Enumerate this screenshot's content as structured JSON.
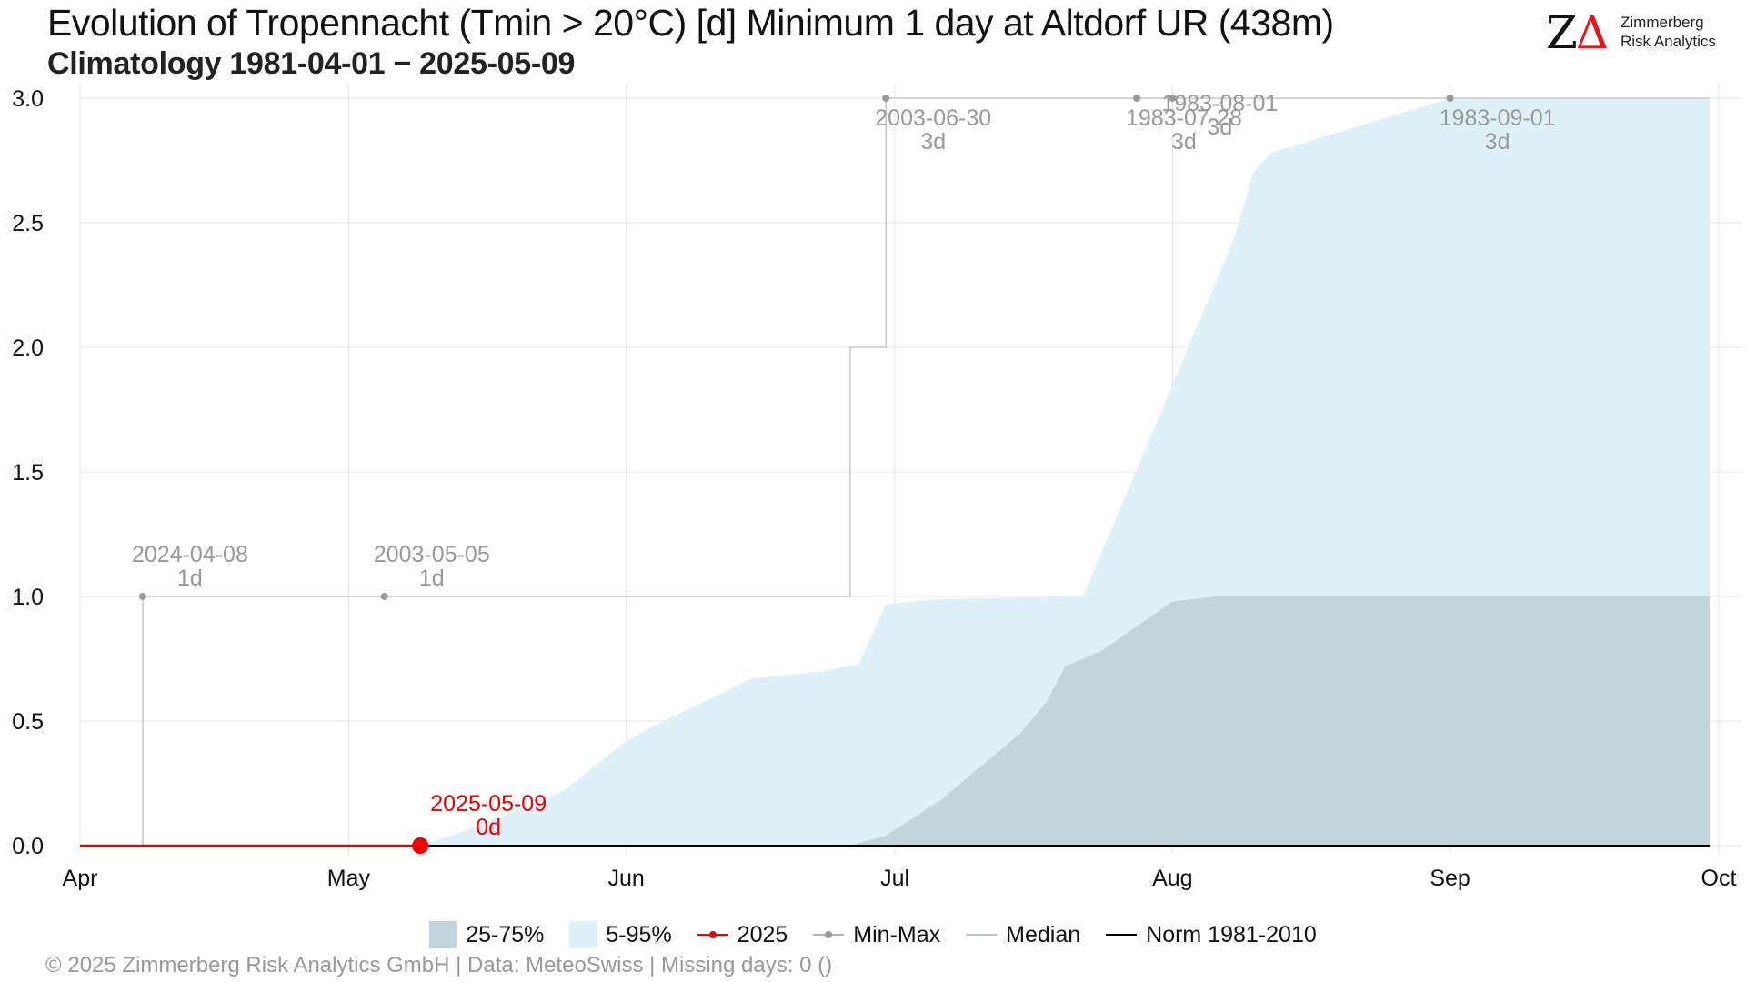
{
  "header": {
    "title": "Evolution of Tropennacht (Tmin > 20°C) [d] Minimum 1 day at Altdorf  UR (438m)",
    "subtitle": "Climatology 1981-04-01 − 2025-05-09"
  },
  "logo": {
    "mark_z": "Z",
    "mark_delta": "Δ",
    "line1": "Zimmerberg",
    "line2": "Risk Analytics"
  },
  "colors": {
    "band_5_95": "#dff1f8",
    "band_25_75": "#c1d5dc",
    "current_year": "#ee0000",
    "min_max": "#999999",
    "median": "#9eb4c9",
    "norm": "#000000",
    "annotation": "#999999"
  },
  "legend": [
    {
      "label": "25-75%",
      "kind": "fill",
      "color": "#c1d5dc"
    },
    {
      "label": "5-95%",
      "kind": "fill",
      "color": "#dff1f8"
    },
    {
      "label": "2025",
      "kind": "line-dot",
      "color": "#ee0000"
    },
    {
      "label": "Min-Max",
      "kind": "line-dot",
      "color": "#999999"
    },
    {
      "label": "Median",
      "kind": "line",
      "color": "#9eb4c9"
    },
    {
      "label": "Norm 1981-2010",
      "kind": "line",
      "color": "#000000"
    }
  ],
  "footer": "©  2025 Zimmerberg Risk Analytics GmbH | Data: MeteoSwiss | Missing days: 0 ()",
  "chart_data": {
    "type": "area",
    "title": "Evolution of Tropennacht (Tmin > 20°C) [d] Minimum 1 day at Altdorf  UR (438m)",
    "subtitle": "Climatology 1981-04-01 − 2025-05-09",
    "xlabel": "",
    "ylabel": "",
    "xlim": [
      "04-01",
      "10-01"
    ],
    "ylim": [
      0,
      3
    ],
    "x_ticks": [
      {
        "date": "04-01",
        "label": "Apr"
      },
      {
        "date": "05-01",
        "label": "May"
      },
      {
        "date": "06-01",
        "label": "Jun"
      },
      {
        "date": "07-01",
        "label": "Jul"
      },
      {
        "date": "08-01",
        "label": "Aug"
      },
      {
        "date": "09-01",
        "label": "Sep"
      },
      {
        "date": "10-01",
        "label": "Oct"
      }
    ],
    "y_ticks": [
      "0.0",
      "0.5",
      "1.0",
      "1.5",
      "2.0",
      "2.5",
      "3.0"
    ],
    "grid": true,
    "legend_position": "bottom",
    "series": [
      {
        "name": "5-95%",
        "kind": "band",
        "lower": [
          [
            "04-01",
            0
          ],
          [
            "09-30",
            0
          ]
        ],
        "upper": [
          [
            "05-09",
            0
          ],
          [
            "05-14",
            0.06
          ],
          [
            "05-25",
            0.22
          ],
          [
            "06-01",
            0.42
          ],
          [
            "06-04",
            0.48
          ],
          [
            "06-15",
            0.67
          ],
          [
            "06-23",
            0.7
          ],
          [
            "06-27",
            0.73
          ],
          [
            "06-30",
            0.97
          ],
          [
            "07-06",
            0.99
          ],
          [
            "07-22",
            1.0
          ],
          [
            "08-01",
            1.85
          ],
          [
            "08-08",
            2.45
          ],
          [
            "08-10",
            2.7
          ],
          [
            "08-12",
            2.78
          ],
          [
            "09-01",
            3.0
          ],
          [
            "09-30",
            3.0
          ]
        ]
      },
      {
        "name": "25-75%",
        "kind": "band",
        "lower": [
          [
            "04-01",
            0
          ],
          [
            "09-30",
            0
          ]
        ],
        "upper": [
          [
            "06-26",
            0
          ],
          [
            "06-30",
            0.04
          ],
          [
            "07-06",
            0.18
          ],
          [
            "07-15",
            0.45
          ],
          [
            "07-18",
            0.58
          ],
          [
            "07-20",
            0.72
          ],
          [
            "07-22",
            0.75
          ],
          [
            "07-24",
            0.78
          ],
          [
            "07-28",
            0.88
          ],
          [
            "08-01",
            0.98
          ],
          [
            "08-06",
            1.0
          ],
          [
            "09-30",
            1.0
          ]
        ]
      },
      {
        "name": "Min-Max",
        "kind": "step",
        "points": [
          [
            "04-01",
            0
          ],
          [
            "04-08",
            1
          ],
          [
            "06-26",
            2
          ],
          [
            "06-30",
            3
          ],
          [
            "09-30",
            3
          ]
        ]
      },
      {
        "name": "Norm 1981-2010",
        "kind": "line",
        "points": [
          [
            "04-01",
            0
          ],
          [
            "09-30",
            0
          ]
        ]
      },
      {
        "name": "2025",
        "kind": "line",
        "points": [
          [
            "04-01",
            0
          ],
          [
            "05-09",
            0
          ]
        ]
      }
    ],
    "markers": [
      {
        "x": "04-08",
        "y": 1,
        "series": "Min-Max"
      },
      {
        "x": "05-05",
        "y": 1,
        "series": "Min-Max"
      },
      {
        "x": "06-30",
        "y": 3,
        "series": "Min-Max"
      },
      {
        "x": "07-28",
        "y": 3,
        "series": "Min-Max"
      },
      {
        "x": "08-01",
        "y": 3,
        "series": "Min-Max"
      },
      {
        "x": "09-01",
        "y": 3,
        "series": "Min-Max"
      },
      {
        "x": "05-09",
        "y": 0,
        "series": "2025"
      }
    ],
    "annotations": [
      {
        "x": "04-08",
        "y": 1,
        "date": "2024-04-08",
        "value": "1d"
      },
      {
        "x": "05-05",
        "y": 1,
        "date": "2003-05-05",
        "value": "1d"
      },
      {
        "x": "06-30",
        "y": 3,
        "date": "2003-06-30",
        "value": "3d"
      },
      {
        "x": "07-28",
        "y": 3,
        "date": "1983-07-28",
        "value": "3d"
      },
      {
        "x": "08-01",
        "y": 3,
        "date": "1983-08-01",
        "value": "3d"
      },
      {
        "x": "09-01",
        "y": 3,
        "date": "1983-09-01",
        "value": "3d"
      },
      {
        "x": "05-09",
        "y": 0,
        "date": "2025-05-09",
        "value": "0d",
        "series": "2025"
      }
    ]
  }
}
